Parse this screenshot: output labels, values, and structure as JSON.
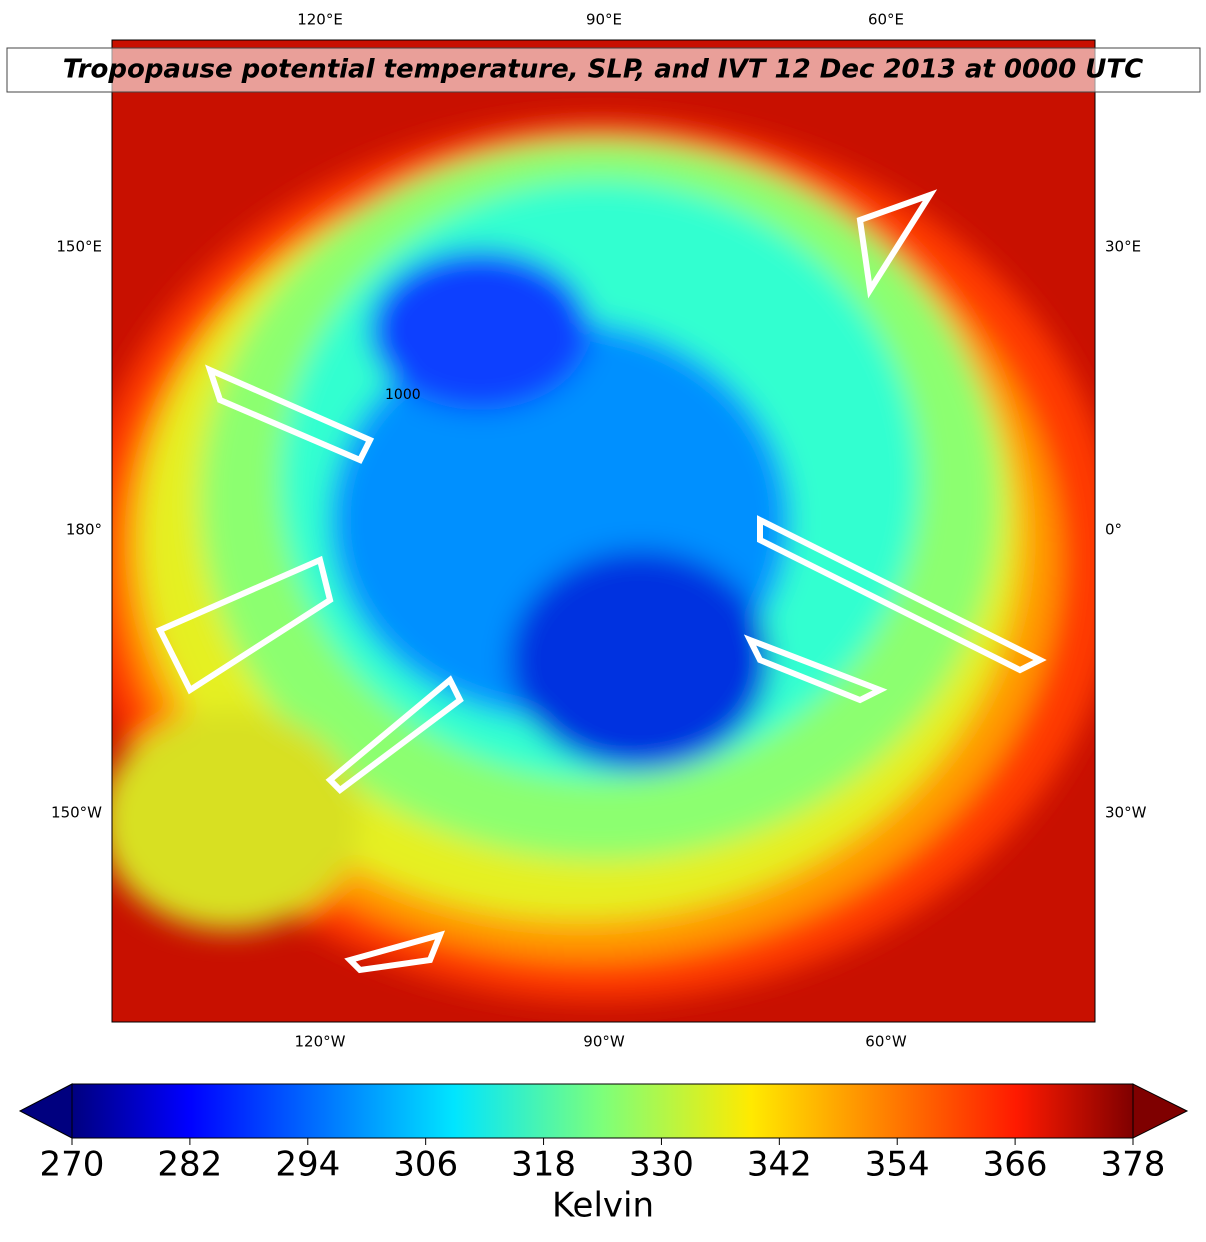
{
  "map": {
    "title": "Tropopause potential temperature, SLP, and IVT 12 Dec 2013 at 0000 UTC",
    "lon_labels": {
      "top": [
        "120°E",
        "90°E",
        "60°E"
      ],
      "left": [
        "150°E",
        "180°",
        "150°W"
      ],
      "right": [
        "30°E",
        "0°",
        "30°W"
      ],
      "bottom": [
        "120°W",
        "90°W",
        "60°W"
      ]
    },
    "contour_labels": [
      "1000"
    ]
  },
  "colorbar": {
    "label": "Kelvin",
    "lim": [
      270,
      378
    ],
    "ticks": [
      270,
      282,
      294,
      306,
      318,
      330,
      342,
      354,
      366,
      378
    ]
  }
}
